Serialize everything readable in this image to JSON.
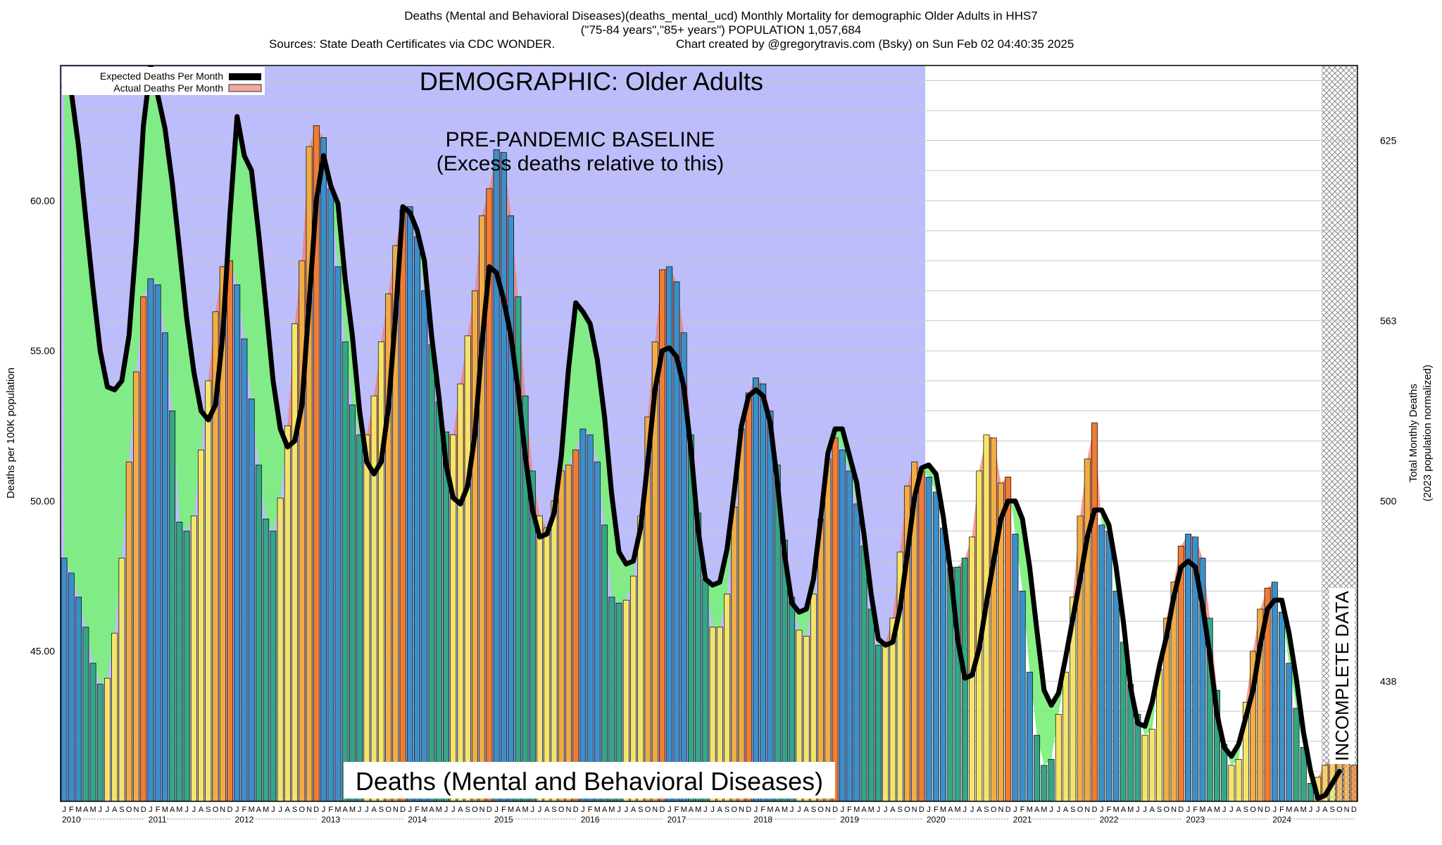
{
  "header": {
    "line1": "Deaths (Mental and Behavioral Diseases)(deaths_mental_ucd) Monthly Mortality for demographic Older Adults in HHS7",
    "line2": "(\"75-84 years\",\"85+ years\") POPULATION 1,057,684",
    "line3_left": "Sources: State Death Certificates via CDC WONDER.",
    "line3_right": "Chart created by @gregorytravis.com (Bsky) on Sun Feb 02 04:40:35 2025"
  },
  "annotations": {
    "demographic": "DEMOGRAPHIC: Older Adults",
    "baseline_line1": "PRE-PANDEMIC BASELINE",
    "baseline_line2": "(Excess deaths relative to this)",
    "incomplete": "INCOMPLETE DATA",
    "bottom_title": "Deaths (Mental and Behavioral Diseases)"
  },
  "legend": {
    "expected": "Expected Deaths Per Month",
    "actual": "Actual Deaths Per Month"
  },
  "colors": {
    "baseline_region": "#bdbdfb",
    "expected_line": "#000000",
    "excess_fill": "#f08070",
    "deficit_fill": "#7af07a",
    "incomplete_hatch": "#999999"
  },
  "chart_data": {
    "type": "bar",
    "x_start": "2010-01",
    "x_end": "2024-12",
    "ylabel": "Deaths per 100K population",
    "ylabel_right_line1": "Total Monthly Deaths",
    "ylabel_right_line2": "(2023 population normalized)",
    "ylim": [
      40,
      64.5
    ],
    "yticks_left": [
      "45.00",
      "50.00",
      "55.00",
      "60.00"
    ],
    "yticks_left_values": [
      45,
      50,
      55,
      60
    ],
    "yticks_right": [
      "438",
      "500",
      "563",
      "625"
    ],
    "yticks_right_values": [
      44.0,
      50.0,
      56.0,
      62.0
    ],
    "baseline_period": [
      "2010-01",
      "2019-12"
    ],
    "incomplete_period_start": "2024-08",
    "month_letters": [
      "J",
      "F",
      "M",
      "A",
      "M",
      "J",
      "J",
      "A",
      "S",
      "O",
      "N",
      "D"
    ],
    "years": [
      "2010",
      "2011",
      "2012",
      "2013",
      "2014",
      "2015",
      "2016",
      "2017",
      "2018",
      "2019",
      "2020",
      "2021",
      "2022",
      "2023",
      "2024"
    ],
    "actual": [
      48.1,
      47.6,
      46.8,
      45.8,
      44.6,
      43.9,
      44.1,
      45.6,
      48.1,
      51.3,
      54.3,
      56.8,
      57.4,
      57.2,
      55.6,
      53.0,
      49.3,
      49.0,
      49.5,
      51.7,
      54.0,
      56.3,
      57.8,
      58.0,
      57.2,
      55.4,
      53.4,
      51.2,
      49.4,
      49.0,
      50.1,
      52.5,
      55.9,
      58.0,
      61.8,
      62.5,
      62.1,
      60.4,
      57.8,
      55.3,
      53.2,
      52.2,
      52.2,
      53.5,
      55.3,
      56.9,
      58.5,
      59.7,
      59.8,
      58.8,
      57.0,
      55.2,
      53.3,
      52.3,
      52.2,
      53.9,
      55.5,
      57.0,
      59.5,
      60.4,
      61.7,
      61.6,
      59.5,
      56.8,
      53.5,
      51.0,
      49.5,
      49.1,
      50.0,
      51.0,
      51.2,
      51.7,
      52.4,
      52.2,
      51.3,
      49.2,
      46.8,
      46.6,
      46.7,
      47.5,
      49.5,
      52.8,
      55.3,
      57.7,
      57.8,
      57.3,
      55.6,
      52.2,
      49.6,
      47.4,
      45.8,
      45.8,
      46.9,
      49.8,
      52.4,
      53.6,
      54.1,
      53.9,
      53.0,
      51.2,
      48.7,
      46.8,
      45.7,
      45.5,
      46.9,
      49.4,
      51.4,
      52.1,
      51.7,
      51.0,
      49.9,
      48.5,
      46.4,
      45.2,
      45.3,
      46.1,
      48.3,
      50.5,
      51.3,
      51.0,
      50.8,
      50.3,
      49.1,
      47.8,
      47.8,
      48.1,
      48.8,
      51.0,
      52.2,
      52.1,
      50.6,
      50.8,
      48.9,
      47.0,
      44.3,
      42.2,
      41.2,
      41.4,
      42.9,
      44.3,
      46.8,
      49.5,
      51.4,
      52.6,
      49.2,
      49.0,
      47.0,
      45.3,
      43.9,
      42.9,
      42.2,
      42.4,
      44.4,
      46.1,
      47.3,
      48.5,
      48.9,
      48.8,
      48.1,
      46.1,
      43.7,
      41.9,
      41.2,
      41.4,
      43.3,
      45.0,
      46.4,
      47.1,
      47.3,
      46.3,
      44.6,
      43.1,
      41.8,
      40.6,
      40.8,
      41.2,
      41.4,
      42.1,
      41.6,
      41.2
    ],
    "expected": [
      63.8,
      63.6,
      61.8,
      59.4,
      57.1,
      55.0,
      53.8,
      53.7,
      54.0,
      55.5,
      58.6,
      62.5,
      64.5,
      63.5,
      62.4,
      60.6,
      58.4,
      56.1,
      54.3,
      53.0,
      52.7,
      53.2,
      55.5,
      59.5,
      62.8,
      61.5,
      61.0,
      58.9,
      56.5,
      54.0,
      52.4,
      51.8,
      52.0,
      53.2,
      56.6,
      60.0,
      61.5,
      60.5,
      59.9,
      57.4,
      55.5,
      53.0,
      51.3,
      50.9,
      51.3,
      53.1,
      56.2,
      59.8,
      59.6,
      59.0,
      58.0,
      55.5,
      53.5,
      51.2,
      50.1,
      49.9,
      50.5,
      52.2,
      55.3,
      57.8,
      57.6,
      56.7,
      55.5,
      53.7,
      51.5,
      49.7,
      48.8,
      48.9,
      49.6,
      51.5,
      54.4,
      56.6,
      56.3,
      55.9,
      54.7,
      52.8,
      50.2,
      48.3,
      47.9,
      48.0,
      49.1,
      51.3,
      53.7,
      55.0,
      55.1,
      54.8,
      53.8,
      51.7,
      49.0,
      47.4,
      47.2,
      47.3,
      48.4,
      50.3,
      52.5,
      53.5,
      53.7,
      53.5,
      52.6,
      50.6,
      48.2,
      46.6,
      46.3,
      46.4,
      47.4,
      49.4,
      51.6,
      52.4,
      52.4,
      51.5,
      50.6,
      48.9,
      46.9,
      45.4,
      45.2,
      45.3,
      46.4,
      48.2,
      50.1,
      51.1,
      51.2,
      50.9,
      49.5,
      47.7,
      45.4,
      44.1,
      44.2,
      45.1,
      46.6,
      48.0,
      49.4,
      50.0,
      50.0,
      49.4,
      47.8,
      45.7,
      43.7,
      43.2,
      43.6,
      44.8,
      46.1,
      47.4,
      48.8,
      49.7,
      49.7,
      49.2,
      47.8,
      46.0,
      43.8,
      42.6,
      42.5,
      43.3,
      44.5,
      45.5,
      46.8,
      47.8,
      48.0,
      47.8,
      46.5,
      44.9,
      42.9,
      41.8,
      41.5,
      41.9,
      42.8,
      43.7,
      45.2,
      46.4,
      46.7,
      46.7,
      45.6,
      44.1,
      42.3,
      41.0,
      40.1,
      40.2,
      40.6,
      41.0,
      null,
      null
    ]
  }
}
